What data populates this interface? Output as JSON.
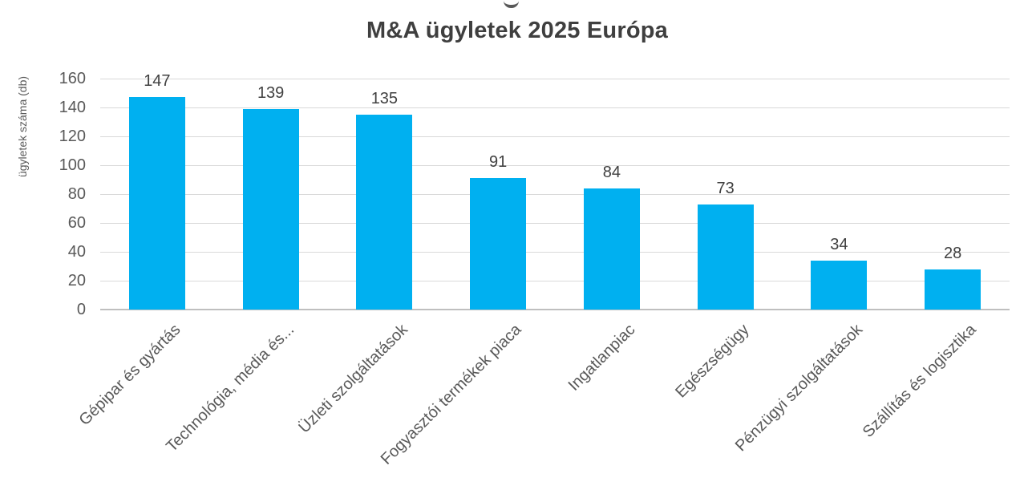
{
  "chart_data": {
    "type": "bar",
    "title": "M&A ügyletek 2025 Európa",
    "xlabel": "",
    "ylabel": "ügyletek száma (db)",
    "categories": [
      "Gépipar és gyártás",
      "Technológia, média és...",
      "Üzleti szolgáltatások",
      "Fogyasztói termékek piaca",
      "Ingatlanpiac",
      "Egészségügy",
      "Pénzügyi szolgáltatások",
      "Szállítás és logisztika"
    ],
    "values": [
      147,
      139,
      135,
      91,
      84,
      73,
      34,
      28
    ],
    "ylim": [
      0,
      160
    ],
    "ytick_step": 20,
    "grid": true,
    "legend_position": "none",
    "bar_color": "#00b0f0",
    "gridline_color": "#d9d9d9",
    "axis_line_color": "#bfbfbf",
    "title_color": "#3f3f3f",
    "value_label_color": "#404040",
    "tick_label_color": "#595959"
  }
}
